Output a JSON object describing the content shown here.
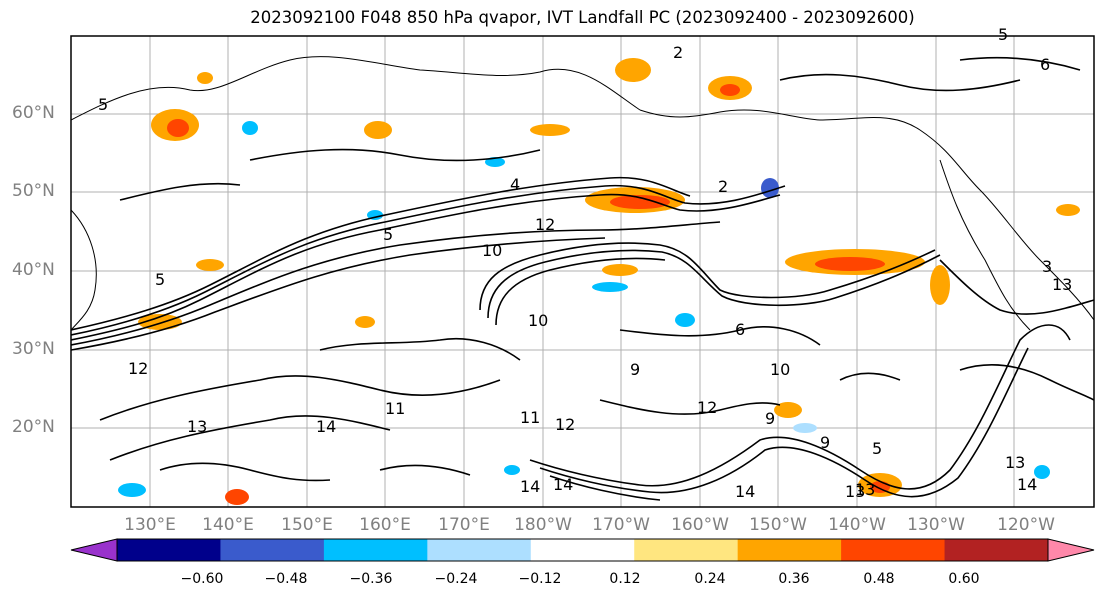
{
  "title": "2023092100 F048 850 hPa qvapor, IVT Landfall PC (2023092400 - 2023092600)",
  "lat_labels": [
    "60°N",
    "50°N",
    "40°N",
    "30°N",
    "20°N"
  ],
  "lon_labels": [
    "130°E",
    "140°E",
    "150°E",
    "160°E",
    "170°E",
    "180°W",
    "170°W",
    "160°W",
    "150°W",
    "140°W",
    "130°W",
    "120°W"
  ],
  "colorbar": {
    "colors": [
      "#9932CC",
      "#00008B",
      "#3A5BCC",
      "#00BFFF",
      "#ADDFFF",
      "#FFFFFF",
      "#FFE680",
      "#FFA500",
      "#FF4500",
      "#B22222",
      "#FF88AA"
    ],
    "tick_labels": [
      "−0.60",
      "−0.48",
      "−0.36",
      "−0.24",
      "−0.12",
      "0.12",
      "0.24",
      "0.36",
      "0.48",
      "0.60"
    ]
  },
  "contour_labels": [
    "5",
    "2",
    "6",
    "5",
    "4",
    "2",
    "5",
    "3",
    "12",
    "5",
    "10",
    "11",
    "13",
    "14",
    "10",
    "9",
    "6",
    "12",
    "11",
    "12",
    "9",
    "14",
    "14",
    "13",
    "5",
    "9",
    "13",
    "14",
    "13",
    "14",
    "12",
    "13",
    "10"
  ]
}
